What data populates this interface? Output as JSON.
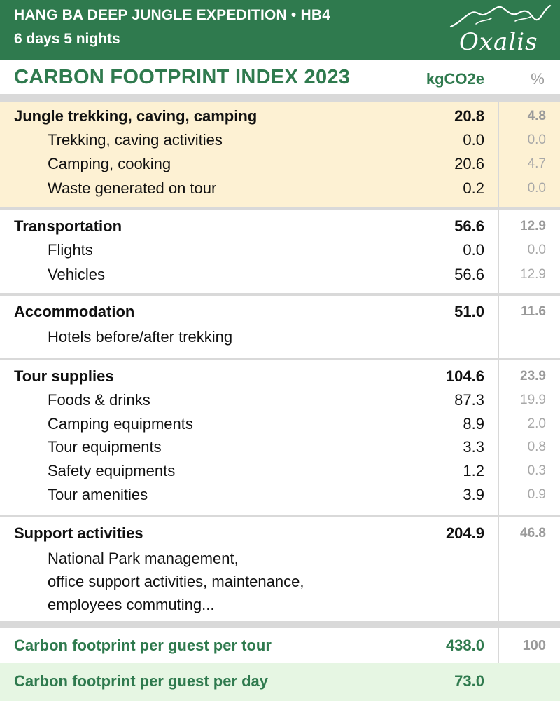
{
  "header": {
    "line1": "HANG BA DEEP JUNGLE EXPEDITION • HB4",
    "line2": "6 days 5 nights",
    "logo_text": "Oxalis"
  },
  "table": {
    "title": "CARBON FOOTPRINT INDEX 2023",
    "unit_label": "kgCO2e",
    "percent_label": "%"
  },
  "sections": [
    {
      "name": "Jungle trekking, caving, camping",
      "value": "20.8",
      "percent": "4.8",
      "items": [
        {
          "label": "Trekking, caving activities",
          "value": "0.0",
          "percent": "0.0"
        },
        {
          "label": "Camping, cooking",
          "value": "20.6",
          "percent": "4.7"
        },
        {
          "label": "Waste generated on tour",
          "value": "0.2",
          "percent": "0.0"
        }
      ]
    },
    {
      "name": "Transportation",
      "value": "56.6",
      "percent": "12.9",
      "items": [
        {
          "label": "Flights",
          "value": "0.0",
          "percent": "0.0"
        },
        {
          "label": "Vehicles",
          "value": "56.6",
          "percent": "12.9"
        }
      ]
    },
    {
      "name": "Accommodation",
      "value": "51.0",
      "percent": "11.6",
      "items": [
        {
          "label": "Hotels before/after trekking"
        }
      ]
    },
    {
      "name": "Tour supplies",
      "value": "104.6",
      "percent": "23.9",
      "items": [
        {
          "label": "Foods & drinks",
          "value": "87.3",
          "percent": "19.9"
        },
        {
          "label": "Camping equipments",
          "value": "8.9",
          "percent": "2.0"
        },
        {
          "label": "Tour equipments",
          "value": "3.3",
          "percent": "0.8"
        },
        {
          "label": "Safety equipments",
          "value": "1.2",
          "percent": "0.3"
        },
        {
          "label": "Tour amenities",
          "value": "3.9",
          "percent": "0.9"
        }
      ]
    },
    {
      "name": "Support activities",
      "value": "204.9",
      "percent": "46.8",
      "description_lines": [
        "National Park management,",
        "office support activities, maintenance,",
        "employees commuting..."
      ]
    }
  ],
  "totals": {
    "per_tour_label": "Carbon footprint per guest per tour",
    "per_tour_value": "438.0",
    "per_tour_percent": "100",
    "per_day_label": "Carbon footprint per guest per day",
    "per_day_value": "73.0"
  },
  "colors": {
    "brand_green": "#2f7a4e",
    "highlight_bg": "#fdf1d3",
    "total_bg": "#e6f6e3",
    "separator": "#d9d9d9"
  }
}
